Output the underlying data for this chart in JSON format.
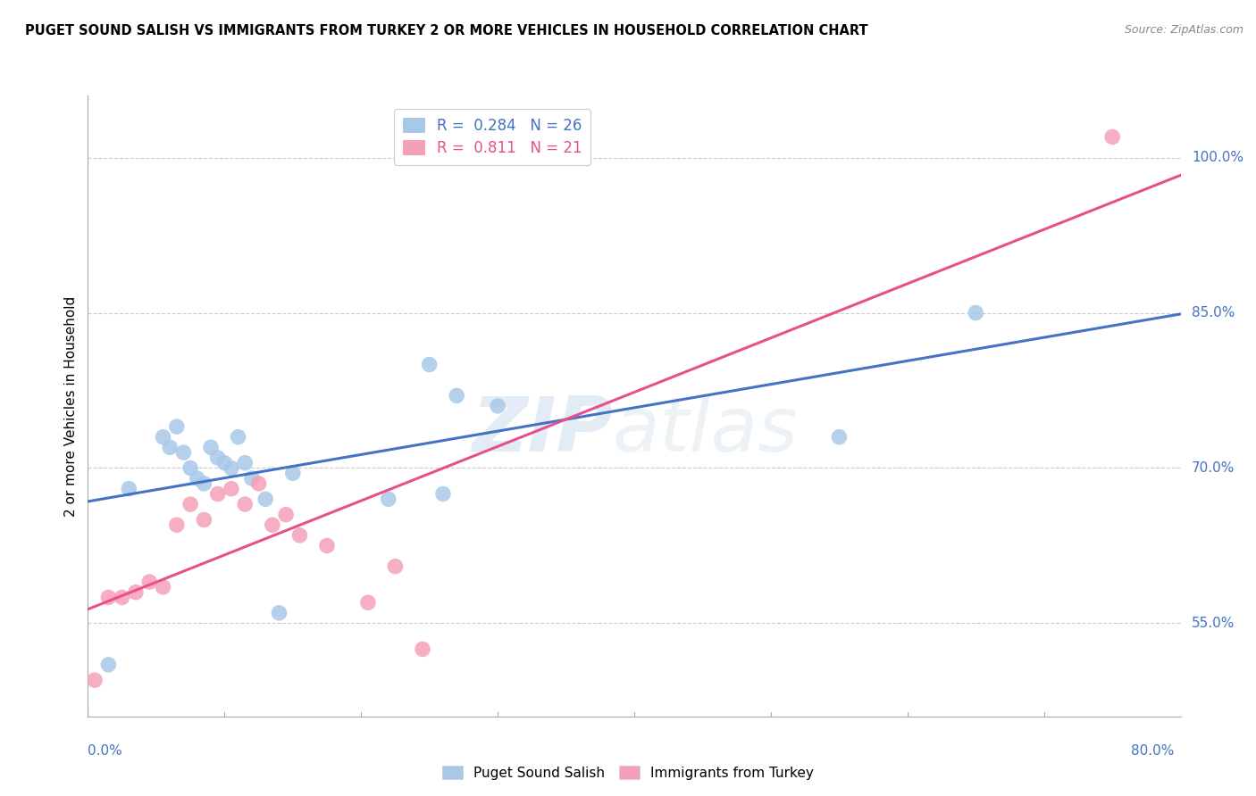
{
  "title": "PUGET SOUND SALISH VS IMMIGRANTS FROM TURKEY 2 OR MORE VEHICLES IN HOUSEHOLD CORRELATION CHART",
  "source": "Source: ZipAtlas.com",
  "ylabel": "2 or more Vehicles in Household",
  "y_ticks": [
    55.0,
    70.0,
    85.0,
    100.0
  ],
  "xmin": 0.0,
  "xmax": 80.0,
  "ymin": 46.0,
  "ymax": 106.0,
  "blue_R": 0.284,
  "blue_N": 26,
  "pink_R": 0.811,
  "pink_N": 21,
  "blue_color": "#a8c8e8",
  "pink_color": "#f4a0b8",
  "blue_line_color": "#4472c4",
  "pink_line_color": "#e8508a",
  "watermark_zip": "ZIP",
  "watermark_atlas": "atlas",
  "blue_scatter_x": [
    1.5,
    3.0,
    5.5,
    6.0,
    6.5,
    7.0,
    7.5,
    8.0,
    8.5,
    9.0,
    9.5,
    10.0,
    10.5,
    11.0,
    11.5,
    12.0,
    13.0,
    14.0,
    15.0,
    22.0,
    25.0,
    26.0,
    27.0,
    30.0,
    55.0,
    65.0
  ],
  "blue_scatter_y": [
    51.0,
    68.0,
    73.0,
    72.0,
    74.0,
    71.5,
    70.0,
    69.0,
    68.5,
    72.0,
    71.0,
    70.5,
    70.0,
    73.0,
    70.5,
    69.0,
    67.0,
    56.0,
    69.5,
    67.0,
    80.0,
    67.5,
    77.0,
    76.0,
    73.0,
    85.0
  ],
  "pink_scatter_x": [
    0.5,
    1.5,
    2.5,
    3.5,
    4.5,
    5.5,
    6.5,
    7.5,
    8.5,
    9.5,
    10.5,
    11.5,
    12.5,
    13.5,
    14.5,
    15.5,
    17.5,
    20.5,
    22.5,
    24.5,
    75.0
  ],
  "pink_scatter_y": [
    49.5,
    57.5,
    57.5,
    58.0,
    59.0,
    58.5,
    64.5,
    66.5,
    65.0,
    67.5,
    68.0,
    66.5,
    68.5,
    64.5,
    65.5,
    63.5,
    62.5,
    57.0,
    60.5,
    52.5,
    102.0
  ]
}
